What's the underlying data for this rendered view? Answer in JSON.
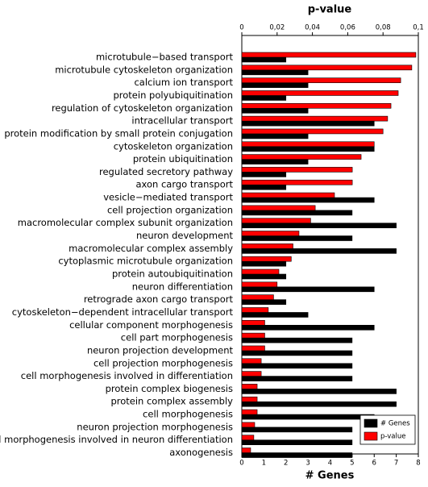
{
  "chart_data": {
    "type": "bar",
    "orientation": "horizontal",
    "x2label": "p-value",
    "xlabel": "# Genes",
    "categories": [
      "microtubule−based transport",
      "microtubule cytoskeleton organization",
      "calcium ion transport",
      "protein polyubiquitination",
      "regulation of cytoskeleton organization",
      "intracellular transport",
      "protein modification by small protein conjugation",
      "cytoskeleton organization",
      "protein ubiquitination",
      "regulated secretory pathway",
      "axon cargo transport",
      "vesicle−mediated transport",
      "cell projection organization",
      "macromolecular complex subunit organization",
      "neuron development",
      "macromolecular complex assembly",
      "cytoplasmic microtubule organization",
      "protein autoubiquitination",
      "neuron differentiation",
      "retrograde axon cargo transport",
      "cytoskeleton−dependent intracellular transport",
      "cellular component morphogenesis",
      "cell part morphogenesis",
      "neuron projection development",
      "cell projection morphogenesis",
      "cell morphogenesis involved in differentiation",
      "protein complex biogenesis",
      "protein complex assembly",
      "cell morphogenesis",
      "neuron projection morphogenesis",
      "cell morphogenesis involved in neuron differentiation",
      "axonogenesis"
    ],
    "series": [
      {
        "name": "# Genes",
        "color": "#000000",
        "values": [
          2,
          3,
          3,
          2,
          3,
          6,
          3,
          6,
          3,
          2,
          2,
          6,
          5,
          7,
          5,
          7,
          2,
          2,
          6,
          2,
          3,
          6,
          5,
          5,
          5,
          5,
          7,
          7,
          6,
          5,
          5,
          5
        ]
      },
      {
        "name": "p-value",
        "color": "#ff0000",
        "axis": "x2",
        "values": [
          0.0986,
          0.0963,
          0.09,
          0.0886,
          0.0845,
          0.0826,
          0.08,
          0.075,
          0.0676,
          0.0626,
          0.0626,
          0.0525,
          0.0416,
          0.039,
          0.0324,
          0.029,
          0.028,
          0.021,
          0.02,
          0.018,
          0.015,
          0.013,
          0.013,
          0.013,
          0.011,
          0.011,
          0.0087,
          0.0087,
          0.0087,
          0.0073,
          0.0068,
          0.005
        ]
      }
    ],
    "xlim": [
      0,
      8
    ],
    "xticks": [
      0,
      1,
      2,
      3,
      4,
      5,
      6,
      7,
      8
    ],
    "x2lim": [
      0,
      0.1
    ],
    "x2ticks": [
      0,
      {
        "value": 0.02,
        "label": "0,02"
      },
      {
        "value": 0.04,
        "label": "0,04"
      },
      {
        "value": 0.06,
        "label": "0,06"
      },
      {
        "value": 0.08,
        "label": "0,08"
      },
      {
        "value": 0.1,
        "label": "0,1"
      }
    ],
    "legend": "lower right"
  }
}
